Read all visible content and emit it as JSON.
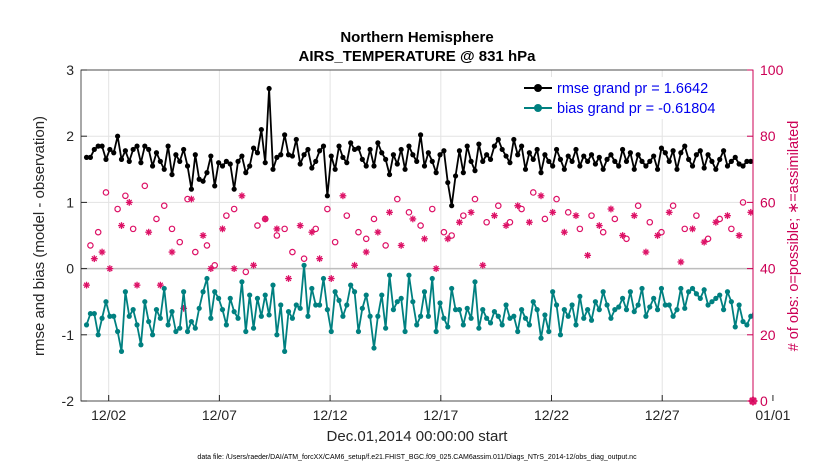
{
  "chart_data": {
    "type": "line",
    "title": "Northern Hemisphere",
    "subtitle": "AIRS_TEMPERATURE @ 831 hPa",
    "xlabel": "Dec.01,2014 00:00:00 start",
    "ylabel": "rmse and bias (model - observation)",
    "y2label": "# of obs: o=possible; ∗=assimilated",
    "footnote": "data file: /Users/raeder/DAI/ATM_forcXX/CAM6_setup/f.e21.FHIST_BGC.f09_025.CAM6assim.011/Diags_NTrS_2014-12/obs_diag_output.nc",
    "xlim": [
      0.75,
      31.1
    ],
    "ylim": [
      -2,
      3
    ],
    "y2lim": [
      0,
      100
    ],
    "grid": true,
    "zero_line": true,
    "x_tick_values": [
      2,
      7,
      12,
      17,
      22,
      27,
      32
    ],
    "x_tick_labels": [
      "12/02",
      "12/07",
      "12/12",
      "12/17",
      "12/22",
      "12/27",
      "01/01"
    ],
    "y_ticks": [
      -2,
      -1,
      0,
      1,
      2,
      3
    ],
    "y2_ticks": [
      0,
      20,
      40,
      60,
      80,
      100
    ],
    "legend_position": "top-right",
    "colors": {
      "rmse": "#000000",
      "bias": "#008080",
      "obs": "#dd1166",
      "right_axis": "#cc0055",
      "legend_text": "#0000ee"
    },
    "series": [
      {
        "name": "rmse grand pr = 1.6642",
        "axis": "left",
        "marker": "filled-circle",
        "color": "#000000",
        "values": [
          1.68,
          1.68,
          1.8,
          1.85,
          1.85,
          1.65,
          1.8,
          1.75,
          2.0,
          1.65,
          1.78,
          1.62,
          1.8,
          1.85,
          1.6,
          1.85,
          1.8,
          1.55,
          1.75,
          1.62,
          1.5,
          1.85,
          1.42,
          1.72,
          1.62,
          1.8,
          1.55,
          1.2,
          1.72,
          1.35,
          1.32,
          1.45,
          1.7,
          1.25,
          1.6,
          1.55,
          1.62,
          1.58,
          1.2,
          1.62,
          1.7,
          1.45,
          1.55,
          1.82,
          1.75,
          2.1,
          1.6,
          2.72,
          1.5,
          1.68,
          1.72,
          2.02,
          1.72,
          1.7,
          1.95,
          1.58,
          1.72,
          1.8,
          1.52,
          1.62,
          1.78,
          1.85,
          1.1,
          1.7,
          1.5,
          1.85,
          1.68,
          1.6,
          1.9,
          1.8,
          1.82,
          1.65,
          1.55,
          1.8,
          1.55,
          1.9,
          1.75,
          1.65,
          1.42,
          1.72,
          1.58,
          1.8,
          1.5,
          1.85,
          1.72,
          1.62,
          2.02,
          1.55,
          1.75,
          1.62,
          1.45,
          1.72,
          1.78,
          1.3,
          0.95,
          1.4,
          1.78,
          1.45,
          1.85,
          1.62,
          1.48,
          1.88,
          1.62,
          1.72,
          1.65,
          1.85,
          1.95,
          1.8,
          1.7,
          1.6,
          1.95,
          1.72,
          1.85,
          1.5,
          1.75,
          1.65,
          1.8,
          1.45,
          1.72,
          1.62,
          1.55,
          1.8,
          1.65,
          1.5,
          1.7,
          1.62,
          1.8,
          1.55,
          1.7,
          1.62,
          1.72,
          1.58,
          1.68,
          1.5,
          1.65,
          1.72,
          1.62,
          1.55,
          1.8,
          1.62,
          1.75,
          1.5,
          1.72,
          1.62,
          1.55,
          1.62,
          1.7,
          1.5,
          1.82,
          1.75,
          1.62,
          1.78,
          1.5,
          1.75,
          1.85,
          1.65,
          1.55,
          1.72,
          1.78,
          1.52,
          1.72,
          1.62,
          1.5,
          1.65,
          1.78,
          1.55,
          1.62,
          1.68,
          1.58,
          1.55,
          1.62,
          1.62
        ]
      },
      {
        "name": "bias grand pr = -0.61804",
        "axis": "left",
        "marker": "filled-circle",
        "color": "#008080",
        "values": [
          -0.85,
          -0.68,
          -0.68,
          -1.0,
          -0.75,
          -0.5,
          -0.72,
          -0.72,
          -0.95,
          -1.25,
          -0.35,
          -0.72,
          -0.62,
          -0.85,
          -1.15,
          -0.5,
          -0.8,
          -1.0,
          -0.62,
          -0.75,
          -0.3,
          -0.85,
          -0.65,
          -0.95,
          -0.9,
          -0.35,
          -0.95,
          -0.8,
          -0.9,
          -0.6,
          -0.35,
          -0.15,
          -0.75,
          -0.35,
          -0.45,
          -0.62,
          -0.85,
          -0.45,
          -0.65,
          -0.75,
          -0.2,
          -0.95,
          -0.4,
          -0.9,
          -0.45,
          -0.72,
          -0.4,
          -0.7,
          -0.25,
          -1.0,
          -0.55,
          -1.25,
          -0.65,
          -0.75,
          -0.55,
          -0.6,
          0.05,
          -0.72,
          -0.3,
          -0.55,
          -0.55,
          -0.15,
          -0.62,
          -0.95,
          -0.35,
          -0.48,
          -0.72,
          -0.55,
          -0.25,
          -0.35,
          -0.95,
          -0.6,
          -0.4,
          -0.72,
          -1.2,
          -0.72,
          -0.4,
          -0.9,
          -0.1,
          -0.62,
          -0.5,
          -0.45,
          -0.95,
          -0.1,
          -0.5,
          -0.85,
          -0.72,
          -0.35,
          -0.72,
          -0.15,
          -0.95,
          -0.52,
          -0.75,
          -0.88,
          -0.3,
          -0.62,
          -0.62,
          -0.85,
          -0.6,
          -0.75,
          -0.2,
          -0.9,
          -0.62,
          -0.75,
          -0.82,
          -0.65,
          -0.72,
          -0.85,
          -0.55,
          -0.75,
          -0.72,
          -0.95,
          -0.62,
          -0.75,
          -0.85,
          -0.5,
          -0.62,
          -1.05,
          -0.7,
          -0.95,
          -0.35,
          -0.55,
          -1.0,
          -0.62,
          -0.72,
          -0.55,
          -0.85,
          -0.42,
          -0.75,
          -0.62,
          -0.78,
          -0.5,
          -0.62,
          -0.35,
          -0.55,
          -0.75,
          -0.62,
          -0.58,
          -0.45,
          -0.62,
          -0.35,
          -0.65,
          -0.55,
          -0.3,
          -0.72,
          -0.58,
          -0.45,
          -0.62,
          -0.3,
          -0.55,
          -0.55,
          -0.72,
          -0.62,
          -0.3,
          -0.6,
          -0.35,
          -0.3,
          -0.38,
          -0.45,
          -0.32,
          -0.55,
          -0.5,
          -0.45,
          -0.4,
          -0.62,
          -0.35,
          -0.5,
          -0.88,
          -0.55,
          -0.8,
          -0.85,
          -0.72,
          -0.68
        ]
      },
      {
        "name": "obs possible",
        "axis": "right",
        "marker": "open-circle",
        "color": "#dd1166",
        "values": [
          null,
          47,
          null,
          51,
          null,
          63,
          null,
          null,
          58,
          null,
          62,
          null,
          52,
          null,
          null,
          65,
          null,
          null,
          55,
          null,
          59,
          null,
          52,
          null,
          48,
          null,
          61,
          null,
          45,
          null,
          null,
          47,
          null,
          41,
          null,
          null,
          56,
          null,
          58,
          null,
          null,
          39,
          null,
          null,
          53,
          null,
          55,
          null,
          null,
          50,
          null,
          52,
          null,
          45,
          null,
          null,
          43,
          null,
          null,
          52,
          null,
          null,
          58,
          null,
          48,
          null,
          null,
          56,
          null,
          null,
          51,
          null,
          49,
          null,
          55,
          null,
          null,
          47,
          null,
          null,
          61,
          null,
          null,
          57,
          null,
          null,
          53,
          null,
          null,
          58,
          null,
          null,
          51,
          null,
          50,
          null,
          null,
          56,
          null,
          null,
          61,
          null,
          null,
          54,
          null,
          null,
          59,
          null,
          null,
          54,
          null,
          null,
          58,
          null,
          null,
          63,
          null,
          null,
          55,
          null,
          null,
          61,
          null,
          null,
          57,
          null,
          null,
          52,
          null,
          null,
          56,
          null,
          null,
          51,
          null,
          null,
          55,
          null,
          null,
          49,
          null,
          null,
          59,
          null,
          null,
          54,
          null,
          null,
          51,
          null,
          null,
          59,
          null,
          null,
          52,
          null,
          null,
          56,
          null,
          null,
          49,
          null,
          null,
          55,
          null,
          null,
          52,
          null,
          null,
          60,
          null,
          null,
          57,
          null,
          null,
          50,
          null,
          null,
          62,
          null,
          null,
          52
        ]
      },
      {
        "name": "obs assimilated",
        "axis": "right",
        "marker": "asterisk",
        "color": "#dd1166",
        "values": [
          35,
          null,
          43,
          null,
          45,
          null,
          40,
          null,
          null,
          53,
          null,
          60,
          null,
          35,
          null,
          null,
          51,
          null,
          null,
          35,
          null,
          null,
          45,
          null,
          null,
          28,
          null,
          61,
          null,
          null,
          50,
          null,
          40,
          null,
          null,
          52,
          null,
          null,
          40,
          null,
          62,
          null,
          null,
          41,
          null,
          null,
          55,
          null,
          null,
          52,
          null,
          null,
          37,
          null,
          null,
          53,
          null,
          null,
          51,
          null,
          43,
          null,
          null,
          37,
          null,
          null,
          62,
          null,
          null,
          41,
          null,
          null,
          45,
          null,
          null,
          51,
          null,
          null,
          57,
          null,
          null,
          47,
          null,
          null,
          55,
          null,
          null,
          49,
          null,
          null,
          40,
          null,
          null,
          49,
          null,
          null,
          54,
          null,
          null,
          57,
          null,
          null,
          41,
          null,
          null,
          56,
          null,
          null,
          53,
          null,
          null,
          59,
          null,
          null,
          54,
          null,
          null,
          62,
          null,
          null,
          57,
          null,
          null,
          51,
          null,
          null,
          56,
          null,
          null,
          44,
          null,
          null,
          53,
          null,
          null,
          58,
          null,
          null,
          50,
          null,
          null,
          56,
          null,
          null,
          45,
          null,
          null,
          50,
          null,
          null,
          57,
          null,
          null,
          42,
          null,
          null,
          52,
          null,
          null,
          48,
          null,
          null,
          54,
          null,
          null,
          56,
          null,
          null,
          50,
          null,
          null,
          57,
          null,
          null,
          48,
          null,
          null,
          57,
          null,
          null,
          42,
          null,
          null,
          52,
          null,
          null,
          57
        ]
      }
    ]
  }
}
